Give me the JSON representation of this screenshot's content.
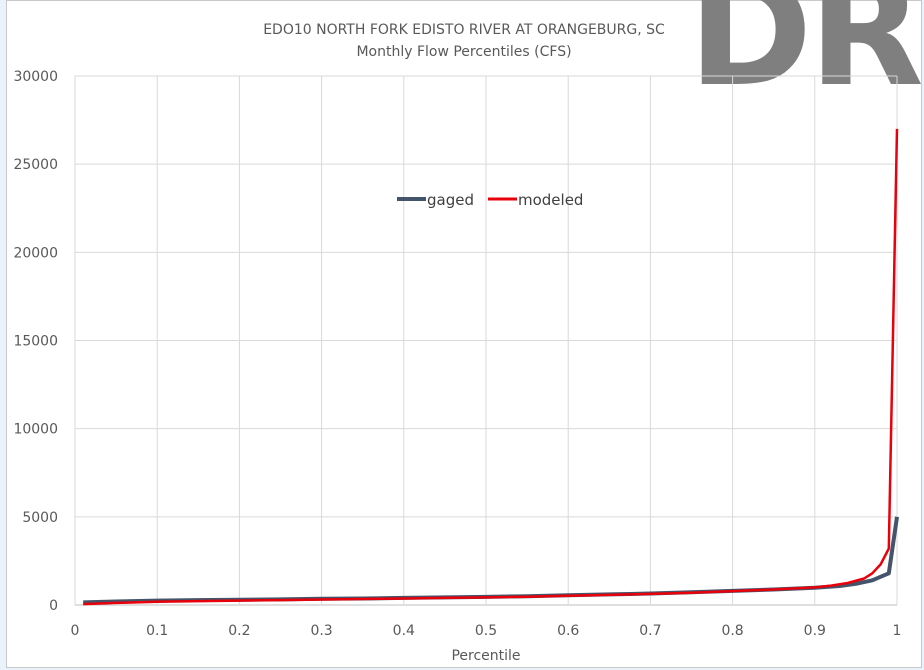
{
  "chart_data": {
    "type": "line",
    "title": "EDO10 NORTH FORK EDISTO RIVER AT ORANGEBURG, SC",
    "subtitle": "Monthly Flow Percentiles (CFS)",
    "xlabel": "Percentile",
    "ylabel": "",
    "xlim": [
      0,
      1
    ],
    "ylim": [
      0,
      30000
    ],
    "x_ticks": [
      "0",
      "0.1",
      "0.2",
      "0.3",
      "0.4",
      "0.5",
      "0.6",
      "0.7",
      "0.8",
      "0.9",
      "1"
    ],
    "y_ticks": [
      "0",
      "5000",
      "10000",
      "15000",
      "20000",
      "25000",
      "30000"
    ],
    "grid": true,
    "legend_position": "center-top",
    "series": [
      {
        "name": "gaged",
        "color": "#44546a",
        "points": [
          [
            0.01,
            150
          ],
          [
            0.05,
            200
          ],
          [
            0.1,
            250
          ],
          [
            0.15,
            280
          ],
          [
            0.2,
            300
          ],
          [
            0.25,
            320
          ],
          [
            0.3,
            350
          ],
          [
            0.35,
            370
          ],
          [
            0.4,
            400
          ],
          [
            0.45,
            430
          ],
          [
            0.5,
            460
          ],
          [
            0.55,
            500
          ],
          [
            0.6,
            550
          ],
          [
            0.65,
            600
          ],
          [
            0.7,
            650
          ],
          [
            0.75,
            720
          ],
          [
            0.8,
            800
          ],
          [
            0.85,
            880
          ],
          [
            0.9,
            980
          ],
          [
            0.93,
            1080
          ],
          [
            0.95,
            1200
          ],
          [
            0.97,
            1400
          ],
          [
            0.99,
            1800
          ],
          [
            1.0,
            5000
          ]
        ]
      },
      {
        "name": "modeled",
        "color": "#e8000b",
        "points": [
          [
            0.01,
            50
          ],
          [
            0.05,
            120
          ],
          [
            0.1,
            180
          ],
          [
            0.15,
            220
          ],
          [
            0.2,
            250
          ],
          [
            0.25,
            280
          ],
          [
            0.3,
            310
          ],
          [
            0.35,
            340
          ],
          [
            0.4,
            370
          ],
          [
            0.45,
            400
          ],
          [
            0.5,
            430
          ],
          [
            0.55,
            470
          ],
          [
            0.6,
            520
          ],
          [
            0.65,
            570
          ],
          [
            0.7,
            630
          ],
          [
            0.75,
            700
          ],
          [
            0.8,
            790
          ],
          [
            0.85,
            880
          ],
          [
            0.9,
            1000
          ],
          [
            0.92,
            1100
          ],
          [
            0.94,
            1250
          ],
          [
            0.96,
            1500
          ],
          [
            0.97,
            1800
          ],
          [
            0.98,
            2300
          ],
          [
            0.99,
            3200
          ],
          [
            1.0,
            27000
          ]
        ]
      }
    ]
  },
  "watermark": "DR"
}
